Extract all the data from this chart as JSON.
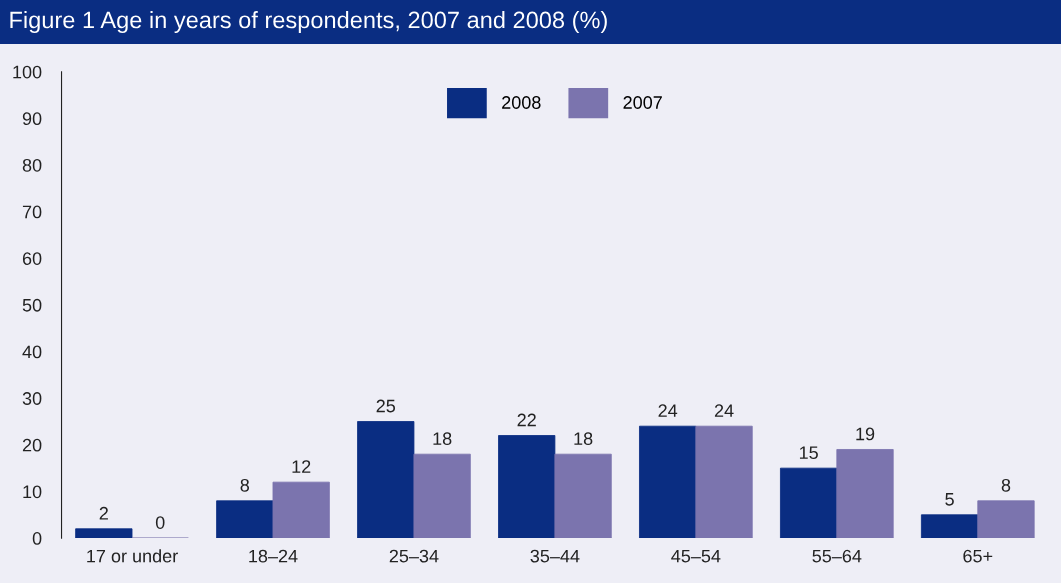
{
  "chart_data": {
    "type": "bar",
    "title": "Figure 1 Age in years of respondents, 2007 and 2008 (%)",
    "categories": [
      "17 or under",
      "18–24",
      "25–34",
      "35–44",
      "45–54",
      "55–64",
      "65+"
    ],
    "series": [
      {
        "name": "2008",
        "color": "#0a2d82",
        "values": [
          2,
          8,
          25,
          22,
          24,
          15,
          5
        ]
      },
      {
        "name": "2007",
        "color": "#7b74ae",
        "values": [
          0,
          12,
          18,
          18,
          24,
          19,
          8
        ]
      }
    ],
    "ylim": [
      0,
      100
    ],
    "yticks": [
      0,
      10,
      20,
      30,
      40,
      50,
      60,
      70,
      80,
      90,
      100
    ],
    "data_labels": true,
    "grid": false,
    "legend": "top"
  }
}
